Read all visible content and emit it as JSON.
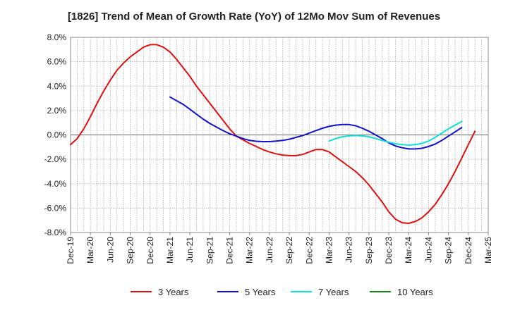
{
  "chart_data": {
    "type": "line",
    "title": "[1826]  Trend of Mean of Growth Rate (YoY) of 12Mo Mov Sum of Revenues",
    "xlabel": "",
    "ylabel": "",
    "ylim": [
      -8.0,
      8.0
    ],
    "y_ticks": [
      "8.0%",
      "6.0%",
      "4.0%",
      "2.0%",
      "0.0%",
      "-2.0%",
      "-4.0%",
      "-6.0%",
      "-8.0%"
    ],
    "y_tick_values": [
      8,
      6,
      4,
      2,
      0,
      -2,
      -4,
      -6,
      -8
    ],
    "x_ticks": [
      "Dec-19",
      "Mar-20",
      "Jun-20",
      "Sep-20",
      "Dec-20",
      "Mar-21",
      "Jun-21",
      "Sep-21",
      "Dec-21",
      "Mar-22",
      "Jun-22",
      "Sep-22",
      "Dec-22",
      "Mar-23",
      "Jun-23",
      "Sep-23",
      "Dec-23",
      "Mar-24",
      "Jun-24",
      "Sep-24",
      "Dec-24",
      "Mar-25"
    ],
    "x_range_months": [
      0,
      63
    ],
    "series": [
      {
        "name": "3 Years",
        "color": "#dd1111",
        "points": [
          [
            0,
            -0.8
          ],
          [
            1,
            -0.3
          ],
          [
            2,
            0.5
          ],
          [
            3,
            1.5
          ],
          [
            4,
            2.6
          ],
          [
            5,
            3.6
          ],
          [
            6,
            4.5
          ],
          [
            7,
            5.3
          ],
          [
            8,
            5.9
          ],
          [
            9,
            6.4
          ],
          [
            10,
            6.8
          ],
          [
            11,
            7.2
          ],
          [
            12,
            7.4
          ],
          [
            13,
            7.4
          ],
          [
            14,
            7.2
          ],
          [
            15,
            6.8
          ],
          [
            16,
            6.2
          ],
          [
            17,
            5.5
          ],
          [
            18,
            4.8
          ],
          [
            19,
            4.0
          ],
          [
            20,
            3.3
          ],
          [
            21,
            2.6
          ],
          [
            22,
            1.9
          ],
          [
            23,
            1.2
          ],
          [
            24,
            0.5
          ],
          [
            25,
            -0.1
          ],
          [
            26,
            -0.4
          ],
          [
            27,
            -0.7
          ],
          [
            28,
            -0.95
          ],
          [
            29,
            -1.2
          ],
          [
            30,
            -1.4
          ],
          [
            31,
            -1.55
          ],
          [
            32,
            -1.65
          ],
          [
            33,
            -1.7
          ],
          [
            34,
            -1.7
          ],
          [
            35,
            -1.6
          ],
          [
            36,
            -1.4
          ],
          [
            37,
            -1.2
          ],
          [
            38,
            -1.2
          ],
          [
            39,
            -1.4
          ],
          [
            40,
            -1.8
          ],
          [
            41,
            -2.2
          ],
          [
            42,
            -2.6
          ],
          [
            43,
            -3.0
          ],
          [
            44,
            -3.5
          ],
          [
            45,
            -4.1
          ],
          [
            46,
            -4.8
          ],
          [
            47,
            -5.5
          ],
          [
            48,
            -6.3
          ],
          [
            49,
            -6.9
          ],
          [
            50,
            -7.2
          ],
          [
            51,
            -7.25
          ],
          [
            52,
            -7.1
          ],
          [
            53,
            -6.8
          ],
          [
            54,
            -6.3
          ],
          [
            55,
            -5.7
          ],
          [
            56,
            -4.9
          ],
          [
            57,
            -4.0
          ],
          [
            58,
            -3.0
          ],
          [
            59,
            -1.9
          ],
          [
            60,
            -0.8
          ],
          [
            61,
            0.3
          ]
        ]
      },
      {
        "name": "5 Years",
        "color": "#1111cc",
        "points": [
          [
            15,
            3.1
          ],
          [
            16,
            2.8
          ],
          [
            17,
            2.5
          ],
          [
            18,
            2.1
          ],
          [
            19,
            1.7
          ],
          [
            20,
            1.3
          ],
          [
            21,
            0.95
          ],
          [
            22,
            0.65
          ],
          [
            23,
            0.35
          ],
          [
            24,
            0.1
          ],
          [
            25,
            -0.1
          ],
          [
            26,
            -0.3
          ],
          [
            27,
            -0.45
          ],
          [
            28,
            -0.52
          ],
          [
            29,
            -0.55
          ],
          [
            30,
            -0.55
          ],
          [
            31,
            -0.5
          ],
          [
            32,
            -0.45
          ],
          [
            33,
            -0.35
          ],
          [
            34,
            -0.2
          ],
          [
            35,
            -0.05
          ],
          [
            36,
            0.15
          ],
          [
            37,
            0.35
          ],
          [
            38,
            0.55
          ],
          [
            39,
            0.7
          ],
          [
            40,
            0.8
          ],
          [
            41,
            0.85
          ],
          [
            42,
            0.85
          ],
          [
            43,
            0.75
          ],
          [
            44,
            0.55
          ],
          [
            45,
            0.3
          ],
          [
            46,
            0.0
          ],
          [
            47,
            -0.3
          ],
          [
            48,
            -0.65
          ],
          [
            49,
            -0.9
          ],
          [
            50,
            -1.05
          ],
          [
            51,
            -1.15
          ],
          [
            52,
            -1.15
          ],
          [
            53,
            -1.1
          ],
          [
            54,
            -0.95
          ],
          [
            55,
            -0.75
          ],
          [
            56,
            -0.45
          ],
          [
            57,
            -0.1
          ],
          [
            58,
            0.25
          ],
          [
            59,
            0.6
          ]
        ]
      },
      {
        "name": "7 Years",
        "color": "#11dddd",
        "points": [
          [
            39,
            -0.5
          ],
          [
            40,
            -0.3
          ],
          [
            41,
            -0.15
          ],
          [
            42,
            -0.08
          ],
          [
            43,
            -0.05
          ],
          [
            44,
            -0.08
          ],
          [
            45,
            -0.15
          ],
          [
            46,
            -0.3
          ],
          [
            47,
            -0.45
          ],
          [
            48,
            -0.6
          ],
          [
            49,
            -0.72
          ],
          [
            50,
            -0.8
          ],
          [
            51,
            -0.83
          ],
          [
            52,
            -0.8
          ],
          [
            53,
            -0.7
          ],
          [
            54,
            -0.5
          ],
          [
            55,
            -0.2
          ],
          [
            56,
            0.15
          ],
          [
            57,
            0.5
          ],
          [
            58,
            0.8
          ],
          [
            59,
            1.1
          ]
        ]
      },
      {
        "name": "10 Years",
        "color": "#118811",
        "points": []
      }
    ],
    "legend_position": "bottom-center",
    "grid": true
  }
}
